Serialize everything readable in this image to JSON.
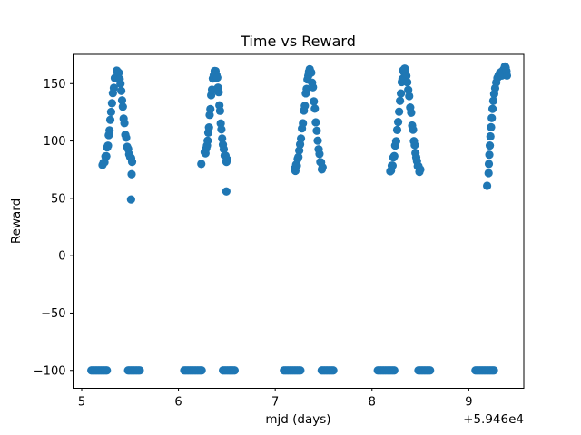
{
  "figure": {
    "kind": "matplotlib-scatter-figure",
    "background": "#ffffff"
  },
  "chart_data": {
    "type": "scatter",
    "title": "Time vs Reward",
    "xlabel": "mjd (days)",
    "ylabel": "Reward",
    "x_offset_label": "+5.946e4",
    "x_offset_value": 59460,
    "xlim": [
      4.911,
      9.569
    ],
    "ylim": [
      -115.6,
      175.5
    ],
    "xticks": [
      5,
      6,
      7,
      8,
      9
    ],
    "yticks": [
      -100,
      -50,
      0,
      50,
      100,
      150
    ],
    "grid": false,
    "legend": null,
    "marker": {
      "shape": "circle",
      "color": "#1f77b4",
      "radius_px": 4.6
    },
    "series": [
      {
        "name": "reward",
        "description": "Nightly reward light-curve: five arch-shaped peaks reaching ~160 with bases ~70-85, rows of saturated points at reward -100, and a few low outliers.",
        "arches": [
          {
            "x_start": 5.215,
            "x_apex": 5.368,
            "x_end": 5.518,
            "y_base_left": 76,
            "y_apex": 160,
            "y_base_right": 80,
            "sigma": 0.55,
            "n": 34
          },
          {
            "x_start": 6.268,
            "x_apex": 6.377,
            "x_end": 6.503,
            "y_base_left": 86,
            "y_apex": 161,
            "y_base_right": 79,
            "sigma": 0.55,
            "n": 30
          },
          {
            "x_start": 7.198,
            "x_apex": 7.36,
            "x_end": 7.49,
            "y_base_left": 71,
            "y_apex": 162,
            "y_base_right": 72,
            "sigma": 0.55,
            "n": 34
          },
          {
            "x_start": 8.188,
            "x_apex": 8.335,
            "x_end": 8.502,
            "y_base_left": 70,
            "y_apex": 162,
            "y_base_right": 70,
            "sigma": 0.55,
            "n": 36
          }
        ],
        "partial_arch_points": [
          [
            9.205,
            72
          ],
          [
            9.208,
            80
          ],
          [
            9.213,
            88
          ],
          [
            9.218,
            96
          ],
          [
            9.224,
            104
          ],
          [
            9.231,
            112
          ],
          [
            9.238,
            120
          ],
          [
            9.246,
            128
          ],
          [
            9.254,
            135
          ],
          [
            9.263,
            141
          ],
          [
            9.273,
            146
          ],
          [
            9.284,
            151
          ],
          [
            9.296,
            155
          ],
          [
            9.308,
            157
          ],
          [
            9.32,
            159
          ],
          [
            9.332,
            160
          ],
          [
            9.342,
            157
          ],
          [
            9.35,
            159
          ],
          [
            9.358,
            162
          ],
          [
            9.366,
            163
          ],
          [
            9.374,
            165
          ],
          [
            9.382,
            164
          ],
          [
            9.39,
            161
          ],
          [
            9.395,
            157
          ]
        ],
        "floor_rows": [
          {
            "x_start": 5.1,
            "x_end": 5.26,
            "y": -100,
            "n": 12
          },
          {
            "x_start": 5.48,
            "x_end": 5.6,
            "y": -100,
            "n": 9
          },
          {
            "x_start": 6.06,
            "x_end": 6.24,
            "y": -100,
            "n": 13
          },
          {
            "x_start": 6.46,
            "x_end": 6.58,
            "y": -100,
            "n": 9
          },
          {
            "x_start": 7.09,
            "x_end": 7.26,
            "y": -100,
            "n": 12
          },
          {
            "x_start": 7.48,
            "x_end": 7.6,
            "y": -100,
            "n": 9
          },
          {
            "x_start": 8.06,
            "x_end": 8.23,
            "y": -100,
            "n": 12
          },
          {
            "x_start": 8.48,
            "x_end": 8.6,
            "y": -100,
            "n": 9
          },
          {
            "x_start": 9.07,
            "x_end": 9.26,
            "y": -100,
            "n": 14
          }
        ],
        "outliers": [
          [
            5.516,
            71
          ],
          [
            5.51,
            49
          ],
          [
            6.236,
            80
          ],
          [
            6.495,
            56
          ],
          [
            9.19,
            61
          ]
        ]
      }
    ]
  }
}
